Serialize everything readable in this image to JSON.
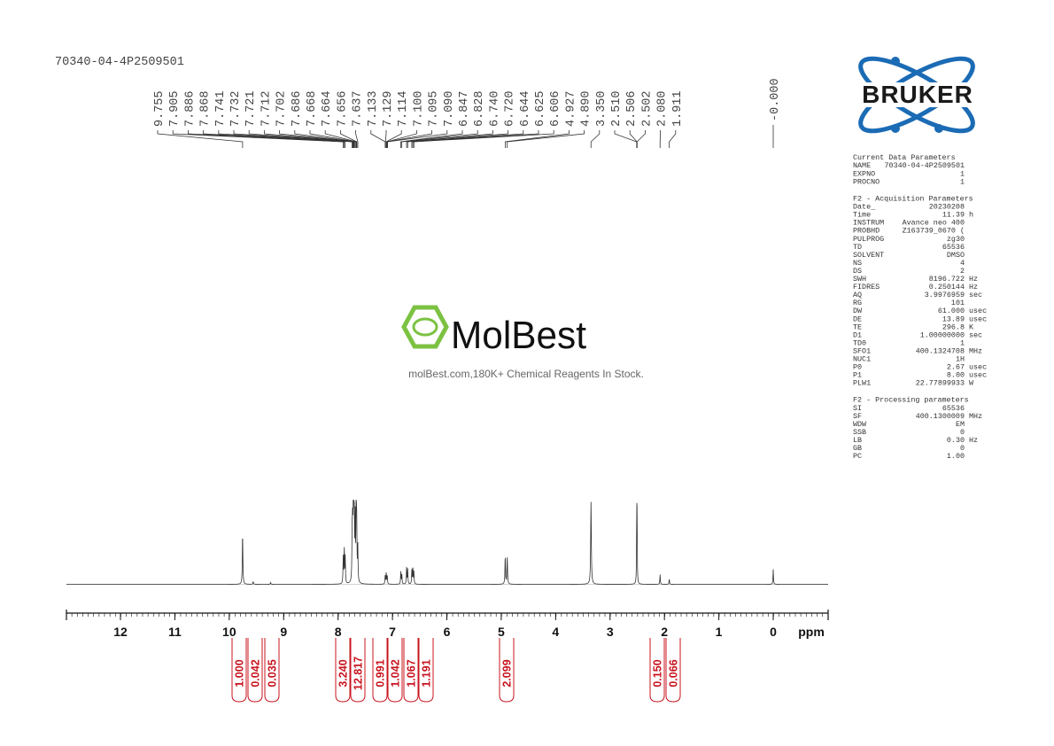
{
  "sample": "70340-04-4P2509501",
  "peak_labels": [
    "9.755",
    "7.905",
    "7.886",
    "7.868",
    "7.741",
    "7.732",
    "7.721",
    "7.712",
    "7.702",
    "7.686",
    "7.668",
    "7.664",
    "7.656",
    "7.637",
    "7.133",
    "7.129",
    "7.114",
    "7.100",
    "7.095",
    "7.090",
    "6.847",
    "6.828",
    "6.740",
    "6.720",
    "6.644",
    "6.625",
    "6.606",
    "4.927",
    "4.890",
    "3.350",
    "2.510",
    "2.506",
    "2.502",
    "2.080",
    "1.911"
  ],
  "reference_peak": "-0.000",
  "axis": {
    "ticks": [
      "12",
      "11",
      "10",
      "9",
      "8",
      "7",
      "6",
      "5",
      "4",
      "3",
      "2",
      "1",
      "0"
    ],
    "unit": "ppm"
  },
  "integrals": [
    "1.000",
    "0.042",
    "0.035",
    "3.240",
    "12.817",
    "0.991",
    "1.042",
    "1.067",
    "1.191",
    "2.099",
    "0.150",
    "0.066"
  ],
  "logo": "BRUKER",
  "watermark": {
    "name": "MolBest",
    "tagline": "molBest.com,180K+ Chemical Reagents In Stock."
  },
  "parameters": [
    {
      "title": "Current Data Parameters",
      "rows": [
        {
          "name": "NAME",
          "value": "70340-04-4P2509501"
        },
        {
          "name": "EXPNO",
          "value": "1"
        },
        {
          "name": "PROCNO",
          "value": "1"
        }
      ]
    },
    {
      "title": "F2 - Acquisition Parameters",
      "rows": [
        {
          "name": "Date_",
          "value": "20230208"
        },
        {
          "name": "Time",
          "value": "11.39",
          "unit": "h"
        },
        {
          "name": "INSTRUM",
          "value": "Avance neo 400"
        },
        {
          "name": "PROBHD",
          "value": "Z163739_0670 ("
        },
        {
          "name": "PULPROG",
          "value": "zg30"
        },
        {
          "name": "TD",
          "value": "65536"
        },
        {
          "name": "SOLVENT",
          "value": "DMSO"
        },
        {
          "name": "NS",
          "value": "4"
        },
        {
          "name": "DS",
          "value": "2"
        },
        {
          "name": "SWH",
          "value": "8196.722",
          "unit": "Hz"
        },
        {
          "name": "FIDRES",
          "value": "0.250144",
          "unit": "Hz"
        },
        {
          "name": "AQ",
          "value": "3.9976959",
          "unit": "sec"
        },
        {
          "name": "RG",
          "value": "101"
        },
        {
          "name": "DW",
          "value": "61.000",
          "unit": "usec"
        },
        {
          "name": "DE",
          "value": "13.89",
          "unit": "usec"
        },
        {
          "name": "TE",
          "value": "296.8",
          "unit": "K"
        },
        {
          "name": "D1",
          "value": "1.00000000",
          "unit": "sec"
        },
        {
          "name": "TD0",
          "value": "1"
        },
        {
          "name": "SFO1",
          "value": "400.1324708",
          "unit": "MHz"
        },
        {
          "name": "NUC1",
          "value": "1H"
        },
        {
          "name": "P0",
          "value": "2.67",
          "unit": "usec"
        },
        {
          "name": "P1",
          "value": "8.00",
          "unit": "usec"
        },
        {
          "name": "PLW1",
          "value": "22.77899933",
          "unit": "W"
        }
      ]
    },
    {
      "title": "F2 - Processing parameters",
      "rows": [
        {
          "name": "SI",
          "value": "65536"
        },
        {
          "name": "SF",
          "value": "400.1300009",
          "unit": "MHz"
        },
        {
          "name": "WDW",
          "value": "EM"
        },
        {
          "name": "SSB",
          "value": "0"
        },
        {
          "name": "LB",
          "value": "0.30",
          "unit": "Hz"
        },
        {
          "name": "GB",
          "value": "0"
        },
        {
          "name": "PC",
          "value": "1.00"
        }
      ]
    }
  ]
}
